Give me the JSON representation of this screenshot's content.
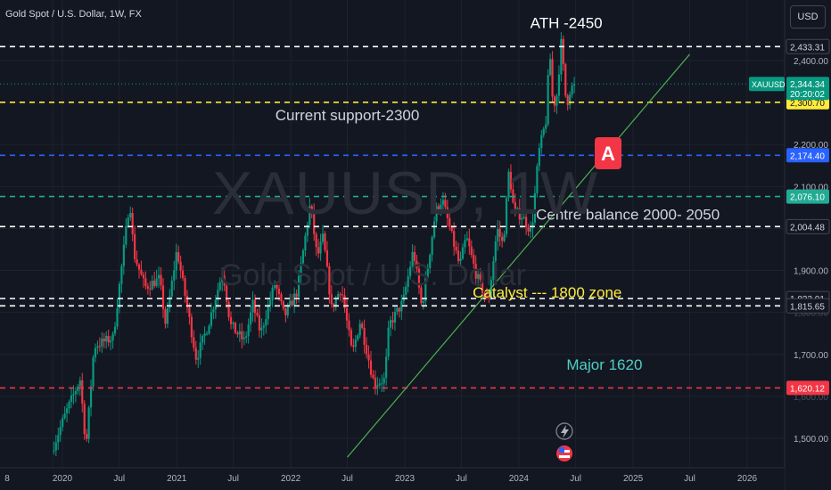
{
  "header": {
    "title": "Gold Spot / U.S. Dollar, 1W, FX",
    "currency_button": "USD"
  },
  "watermark": {
    "symbol": "XAUUSD, 1W",
    "name": "Gold Spot / U.S. Dollar"
  },
  "symbol_badge": {
    "label": "XAUUSD",
    "price": "2,344.34",
    "countdown": "20:20:02",
    "color": "#089981"
  },
  "annotation_badge": {
    "letter": "A",
    "color": "#f23645"
  },
  "chart_data": {
    "type": "candlestick",
    "title": "Gold Spot / U.S. Dollar, 1W, FX",
    "xlabel": "",
    "ylabel": "",
    "ylim": [
      1461,
      2491
    ],
    "x_range": [
      "2019-01-01",
      "2026-06-01"
    ],
    "y_ticks": [
      {
        "value": 1500,
        "label": "1,500.00"
      },
      {
        "value": 1600,
        "label": "1,600.00"
      },
      {
        "value": 1700,
        "label": "1,700.00"
      },
      {
        "value": 1800,
        "label": "1,800.00"
      },
      {
        "value": 1900,
        "label": "1,900.00"
      },
      {
        "value": 2000,
        "label": "2,000.00"
      },
      {
        "value": 2100,
        "label": "2,100.00"
      },
      {
        "value": 2200,
        "label": "2,200.00"
      },
      {
        "value": 2300,
        "label": "2,300.00"
      },
      {
        "value": 2400,
        "label": "2,400.00"
      }
    ],
    "x_ticks": [
      {
        "date": "2019-12-01",
        "label": "8"
      },
      {
        "date": "2020-01-01",
        "label": "2020"
      },
      {
        "date": "2020-07-01",
        "label": "Jul"
      },
      {
        "date": "2021-01-01",
        "label": "2021"
      },
      {
        "date": "2021-07-01",
        "label": "Jul"
      },
      {
        "date": "2022-01-01",
        "label": "2022"
      },
      {
        "date": "2022-07-01",
        "label": "Jul"
      },
      {
        "date": "2023-01-01",
        "label": "2023"
      },
      {
        "date": "2023-07-01",
        "label": "Jul"
      },
      {
        "date": "2024-01-01",
        "label": "2024"
      },
      {
        "date": "2024-07-01",
        "label": "Jul"
      },
      {
        "date": "2025-01-01",
        "label": "2025"
      },
      {
        "date": "2025-07-01",
        "label": "Jul"
      },
      {
        "date": "2026-01-01",
        "label": "2026"
      }
    ],
    "price_series": [
      [
        "2019-12-01",
        1470
      ],
      [
        "2020-01-15",
        1560
      ],
      [
        "2020-03-01",
        1640
      ],
      [
        "2020-03-20",
        1480
      ],
      [
        "2020-04-15",
        1720
      ],
      [
        "2020-06-15",
        1740
      ],
      [
        "2020-08-07",
        2070
      ],
      [
        "2020-08-20",
        1940
      ],
      [
        "2020-09-25",
        1860
      ],
      [
        "2020-11-10",
        1880
      ],
      [
        "2020-11-30",
        1770
      ],
      [
        "2021-01-05",
        1950
      ],
      [
        "2021-03-08",
        1690
      ],
      [
        "2021-04-15",
        1770
      ],
      [
        "2021-06-01",
        1900
      ],
      [
        "2021-06-25",
        1770
      ],
      [
        "2021-08-10",
        1730
      ],
      [
        "2021-09-05",
        1820
      ],
      [
        "2021-09-30",
        1750
      ],
      [
        "2021-11-15",
        1870
      ],
      [
        "2021-12-15",
        1790
      ],
      [
        "2022-01-25",
        1850
      ],
      [
        "2022-03-08",
        2060
      ],
      [
        "2022-03-30",
        1930
      ],
      [
        "2022-04-18",
        1980
      ],
      [
        "2022-05-15",
        1810
      ],
      [
        "2022-06-15",
        1860
      ],
      [
        "2022-07-20",
        1700
      ],
      [
        "2022-08-15",
        1780
      ],
      [
        "2022-09-28",
        1630
      ],
      [
        "2022-11-01",
        1640
      ],
      [
        "2022-11-15",
        1770
      ],
      [
        "2022-12-30",
        1825
      ],
      [
        "2023-02-01",
        1950
      ],
      [
        "2023-02-28",
        1810
      ],
      [
        "2023-04-13",
        2040
      ],
      [
        "2023-05-04",
        2070
      ],
      [
        "2023-06-29",
        1910
      ],
      [
        "2023-07-20",
        1980
      ],
      [
        "2023-08-21",
        1890
      ],
      [
        "2023-09-28",
        1820
      ],
      [
        "2023-10-27",
        2000
      ],
      [
        "2023-11-15",
        1960
      ],
      [
        "2023-12-04",
        2140
      ],
      [
        "2023-12-20",
        2040
      ],
      [
        "2024-01-15",
        2030
      ],
      [
        "2024-02-14",
        1990
      ],
      [
        "2024-03-08",
        2180
      ],
      [
        "2024-04-01",
        2260
      ],
      [
        "2024-04-12",
        2430
      ],
      [
        "2024-04-22",
        2300
      ],
      [
        "2024-05-03",
        2300
      ],
      [
        "2024-05-20",
        2450
      ],
      [
        "2024-05-31",
        2327
      ],
      [
        "2024-06-07",
        2294
      ],
      [
        "2024-06-14",
        2332
      ],
      [
        "2024-06-21",
        2321
      ],
      [
        "2024-06-24",
        2344
      ]
    ],
    "horizontal_levels": [
      {
        "value": 2433.31,
        "label": "2,433.31",
        "color": "#ffffff"
      },
      {
        "value": 2300.7,
        "label": "2,300.70",
        "color": "#ffeb3b"
      },
      {
        "value": 2174.4,
        "label": "2,174.40",
        "color": "#2962ff"
      },
      {
        "value": 2076.1,
        "label": "2,076.10",
        "color": "#22ab94"
      },
      {
        "value": 2004.48,
        "label": "2,004.48",
        "color": "#ffffff"
      },
      {
        "value": 1833.01,
        "label": "1,833.01",
        "color": "#ffffff"
      },
      {
        "value": 1815.65,
        "label": "1,815.65",
        "color": "#ffffff"
      },
      {
        "value": 1620.12,
        "label": "1,620.12",
        "color": "#f23645"
      }
    ],
    "trendline": {
      "from": [
        "2022-07-01",
        1455
      ],
      "to": [
        "2025-07-01",
        2415
      ],
      "color": "#4caf50"
    },
    "current_price": {
      "value": 2344.34,
      "color": "#089981"
    },
    "annotations": [
      {
        "text": "ATH -2450",
        "date": "2024-06-01",
        "value": 2478,
        "color": "#ffffff"
      },
      {
        "text": "Current support-2300",
        "date": "2022-07-01",
        "value": 2258,
        "color": "#d1d4dc"
      },
      {
        "text": "Centre balance 2000- 2050",
        "date": "2024-12-15",
        "value": 2021,
        "color": "#d1d4dc"
      },
      {
        "text": "Catalyst --- 1800 zone",
        "date": "2024-04-01",
        "value": 1835,
        "color": "#ffeb3b"
      },
      {
        "text": "Major 1620",
        "date": "2024-10-01",
        "value": 1663,
        "color": "#4dd0c4"
      }
    ],
    "up_color": "#089981",
    "down_color": "#f23645"
  }
}
